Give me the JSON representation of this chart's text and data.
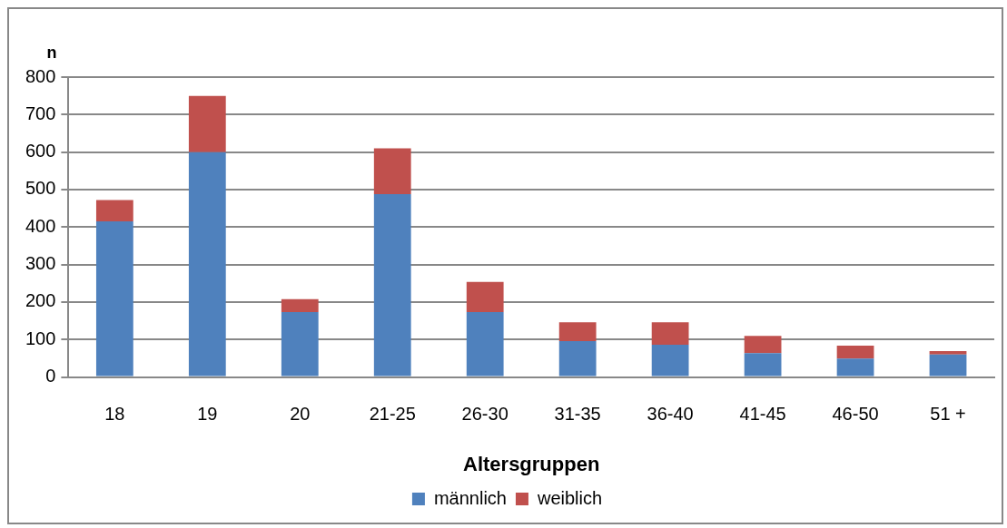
{
  "chart_data": {
    "type": "bar",
    "stacked": true,
    "ylabel": "n",
    "xlabel": "Altersgruppen",
    "categories": [
      "18",
      "19",
      "20",
      "21-25",
      "26-30",
      "31-35",
      "36-40",
      "41-45",
      "46-50",
      "51 +"
    ],
    "series": [
      {
        "name": "männlich",
        "color": "#4f81bd",
        "values": [
          415,
          600,
          173,
          488,
          173,
          96,
          86,
          64,
          49,
          60
        ]
      },
      {
        "name": "weiblich",
        "color": "#c0504d",
        "values": [
          57,
          150,
          35,
          122,
          81,
          50,
          60,
          46,
          35,
          9
        ]
      }
    ],
    "ylim": [
      0,
      800
    ],
    "yticks": [
      0,
      100,
      200,
      300,
      400,
      500,
      600,
      700,
      800
    ],
    "grid": "y",
    "legend": "bottom"
  }
}
